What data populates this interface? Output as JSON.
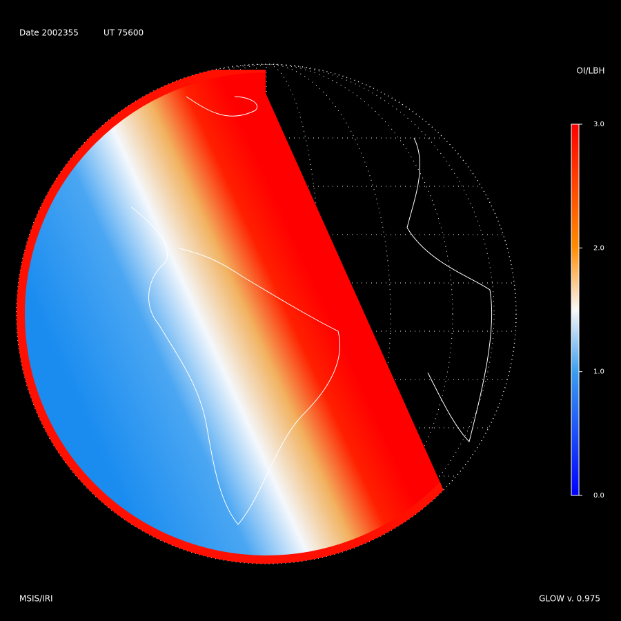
{
  "header": {
    "date": "Date 2002355",
    "time": "UT 75600"
  },
  "colorbar": {
    "title": "OI/LBH",
    "lim": [
      0,
      3
    ],
    "ticks": [
      {
        "value": 3,
        "label": "3.0"
      },
      {
        "value": 2,
        "label": "2.0"
      },
      {
        "value": 1,
        "label": "1.0"
      },
      {
        "value": 0,
        "label": "0.0"
      }
    ]
  },
  "footer": {
    "model": "MSIS/IRI",
    "version": "GLOW v. 0.975"
  }
}
